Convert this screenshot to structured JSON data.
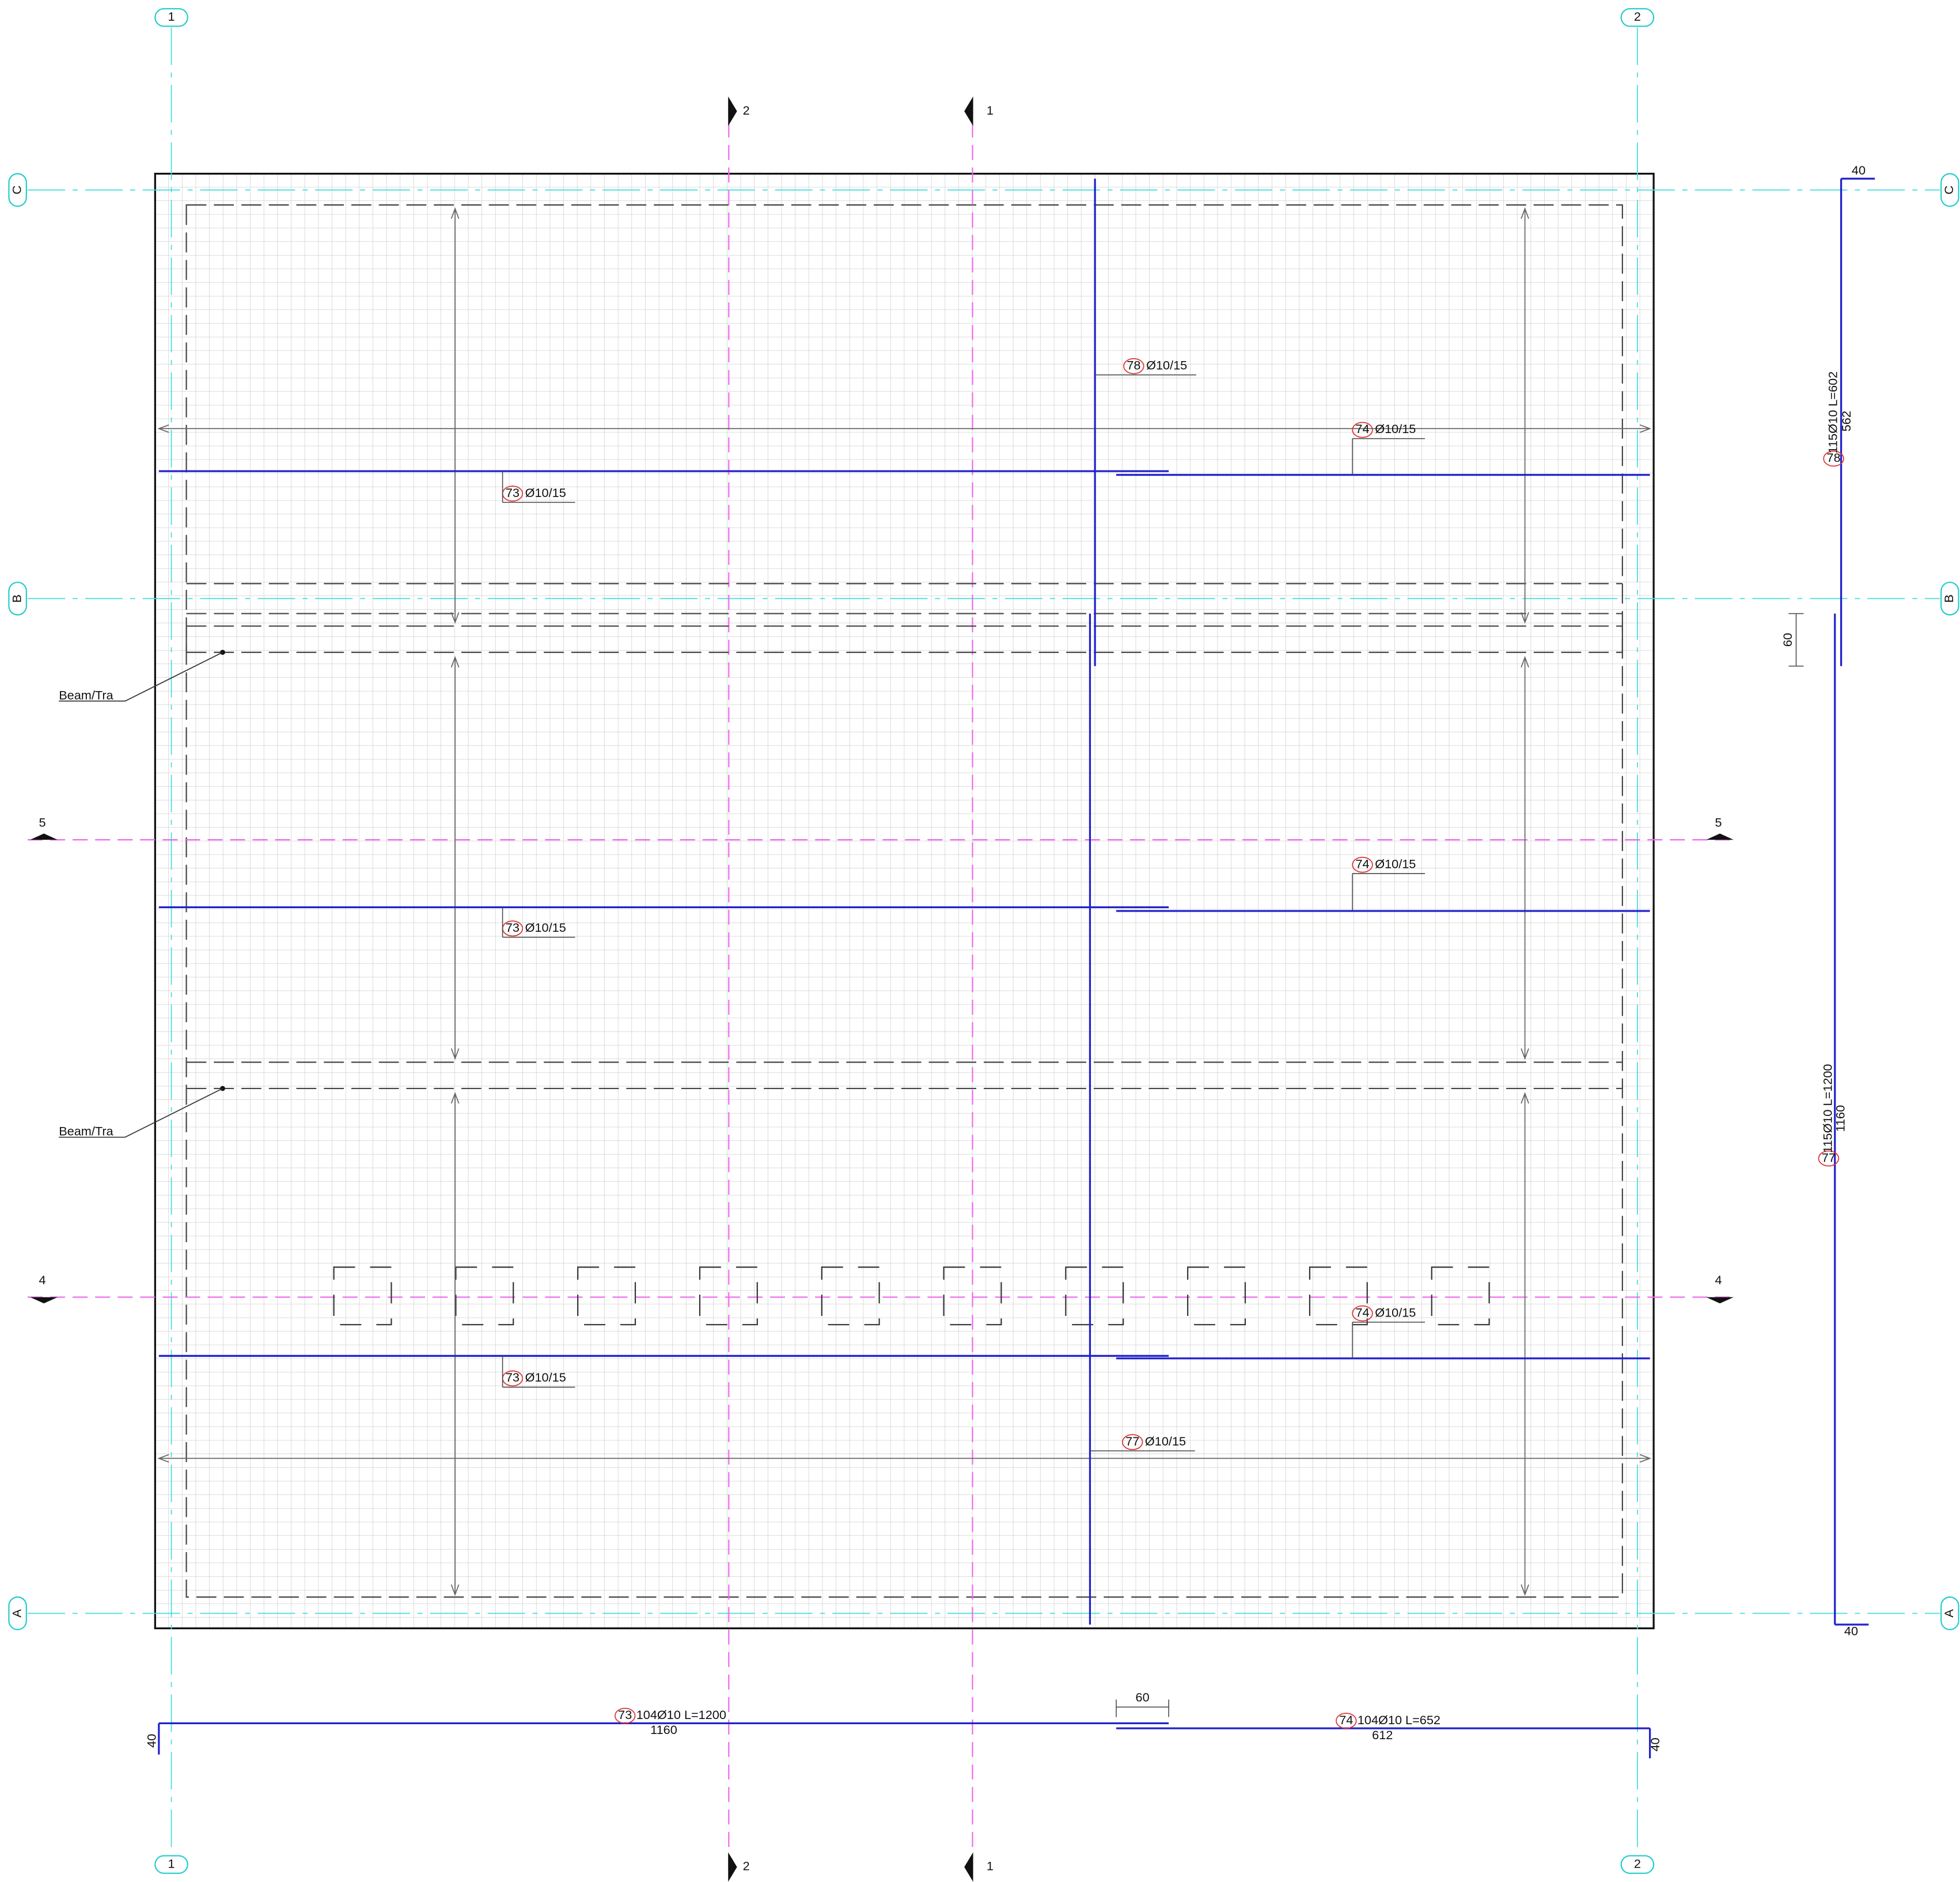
{
  "grid": {
    "columns": [
      "1",
      "2"
    ],
    "rows": [
      "A",
      "B",
      "C"
    ]
  },
  "sections": {
    "vertical": [
      "2",
      "1"
    ],
    "horizontal": [
      "5",
      "4"
    ]
  },
  "beams": [
    "Beam/Tra",
    "Beam/Tra"
  ],
  "callouts": [
    {
      "mark": "78",
      "spec": "Ø10/15"
    },
    {
      "mark": "74",
      "spec": "Ø10/15"
    },
    {
      "mark": "74",
      "spec": "Ø10/15"
    },
    {
      "mark": "74",
      "spec": "Ø10/15"
    },
    {
      "mark": "73",
      "spec": "Ø10/15"
    },
    {
      "mark": "73",
      "spec": "Ø10/15"
    },
    {
      "mark": "73",
      "spec": "Ø10/15"
    },
    {
      "mark": "77",
      "spec": "Ø10/15"
    }
  ],
  "schedule": [
    {
      "mark": "73",
      "spec": "104Ø10 L=1200",
      "length": "1160",
      "hook": "40"
    },
    {
      "mark": "74",
      "spec": "104Ø10 L=652",
      "length": "612",
      "hook": "40"
    },
    {
      "mark": "78",
      "spec": "115Ø10 L=602",
      "length": "562",
      "hook": "40"
    },
    {
      "mark": "77",
      "spec": "115Ø10 L=1200",
      "length": "1160",
      "hook": "40"
    }
  ],
  "laps": [
    "60",
    "60"
  ]
}
